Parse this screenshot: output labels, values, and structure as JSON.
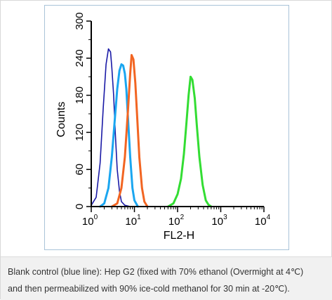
{
  "chart_data": {
    "type": "line",
    "xlabel": "FL2-H",
    "ylabel": "Counts",
    "x_scale": "log",
    "xlim": [
      1,
      10000
    ],
    "ylim": [
      0,
      300
    ],
    "yticks": [
      "0",
      "60",
      "120",
      "180",
      "240",
      "300"
    ],
    "xticks": [
      {
        "base": "10",
        "exp": "0"
      },
      {
        "base": "10",
        "exp": "1"
      },
      {
        "base": "10",
        "exp": "2"
      },
      {
        "base": "10",
        "exp": "3"
      },
      {
        "base": "10",
        "exp": "4"
      }
    ],
    "grid": false,
    "series": [
      {
        "color": "#1a1aa6",
        "x": [
          1.0,
          1.3,
          1.6,
          1.9,
          2.2,
          2.5,
          2.8,
          3.0,
          3.3,
          3.6,
          4.0,
          4.5,
          5.0,
          6.0,
          8.0
        ],
        "y": [
          2,
          15,
          70,
          160,
          230,
          255,
          250,
          225,
          180,
          120,
          60,
          25,
          8,
          2,
          0
        ]
      },
      {
        "color": "#1aa6f0",
        "x": [
          1.6,
          2.0,
          2.5,
          3.0,
          3.5,
          4.0,
          4.5,
          5.0,
          5.5,
          6.0,
          6.5,
          7.0,
          8.0,
          9.0,
          10.0,
          12.0
        ],
        "y": [
          0,
          5,
          30,
          80,
          140,
          190,
          220,
          230,
          228,
          215,
          190,
          150,
          80,
          30,
          10,
          0
        ]
      },
      {
        "color": "#f26522",
        "x": [
          3.0,
          4.0,
          5.0,
          6.0,
          7.0,
          8.0,
          8.6,
          9.5,
          10.5,
          11.5,
          13.0,
          15.0,
          17.0,
          20.0
        ],
        "y": [
          0,
          5,
          30,
          80,
          150,
          215,
          245,
          238,
          200,
          150,
          80,
          30,
          8,
          0
        ]
      },
      {
        "color": "#33dd33",
        "x": [
          60,
          80,
          100,
          120,
          140,
          160,
          180,
          200,
          220,
          250,
          280,
          320,
          380,
          450,
          520,
          600
        ],
        "y": [
          0,
          5,
          20,
          45,
          85,
          135,
          180,
          210,
          205,
          175,
          130,
          80,
          35,
          10,
          3,
          0
        ]
      }
    ]
  },
  "caption": {
    "line1": "Blank control (blue line): Hep G2 (fixed with 70% ethanol (Overmight at 4℃)",
    "line2": "and then permeabilized with 90% ice-cold methanol for 30 min at -20℃)."
  }
}
